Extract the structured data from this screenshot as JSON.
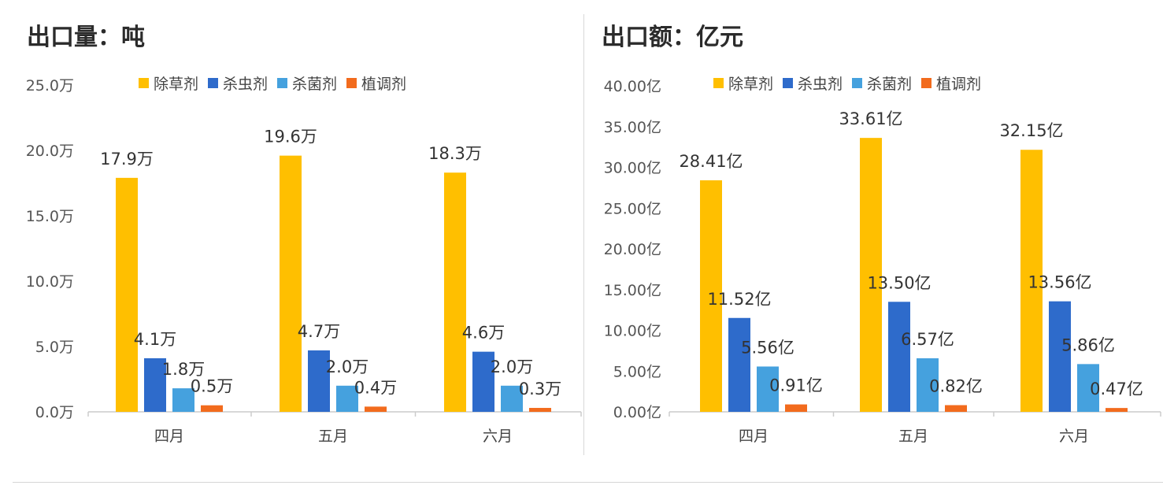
{
  "colors": {
    "herbicide": "#FFBF00",
    "insecticide": "#2E6BCB",
    "fungicide": "#45A1DE",
    "regulator": "#F26B1D",
    "axis": "#cccccc",
    "text": "#404040"
  },
  "chart_data": [
    {
      "type": "bar",
      "title": "出口量：吨",
      "categories": [
        "四月",
        "五月",
        "六月"
      ],
      "legend": [
        "除草剂",
        "杀虫剂",
        "杀菌剂",
        "植调剂"
      ],
      "legend_position": "top",
      "unit_suffix": "万",
      "ylim": [
        0,
        25
      ],
      "yticks": [
        0,
        5,
        10,
        15,
        20,
        25
      ],
      "ytick_labels": [
        "0.0万",
        "5.0万",
        "10.0万",
        "15.0万",
        "20.0万",
        "25.0万"
      ],
      "series": [
        {
          "name": "除草剂",
          "values": [
            17.9,
            19.6,
            18.3
          ],
          "labels": [
            "17.9万",
            "19.6万",
            "18.3万"
          ]
        },
        {
          "name": "杀虫剂",
          "values": [
            4.1,
            4.7,
            4.6
          ],
          "labels": [
            "4.1万",
            "4.7万",
            "4.6万"
          ]
        },
        {
          "name": "杀菌剂",
          "values": [
            1.8,
            2.0,
            2.0
          ],
          "labels": [
            "1.8万",
            "2.0万",
            "2.0万"
          ]
        },
        {
          "name": "植调剂",
          "values": [
            0.5,
            0.4,
            0.3
          ],
          "labels": [
            "0.5万",
            "0.4万",
            "0.3万"
          ]
        }
      ],
      "grid": false
    },
    {
      "type": "bar",
      "title": "出口额：亿元",
      "categories": [
        "四月",
        "五月",
        "六月"
      ],
      "legend": [
        "除草剂",
        "杀虫剂",
        "杀菌剂",
        "植调剂"
      ],
      "legend_position": "top",
      "unit_suffix": "亿",
      "ylim": [
        0,
        40
      ],
      "yticks": [
        0,
        5,
        10,
        15,
        20,
        25,
        30,
        35,
        40
      ],
      "ytick_labels": [
        "0.00亿",
        "5.00亿",
        "10.00亿",
        "15.00亿",
        "20.00亿",
        "25.00亿",
        "30.00亿",
        "35.00亿",
        "40.00亿"
      ],
      "series": [
        {
          "name": "除草剂",
          "values": [
            28.41,
            33.61,
            32.15
          ],
          "labels": [
            "28.41亿",
            "33.61亿",
            "32.15亿"
          ]
        },
        {
          "name": "杀虫剂",
          "values": [
            11.52,
            13.5,
            13.56
          ],
          "labels": [
            "11.52亿",
            "13.50亿",
            "13.56亿"
          ]
        },
        {
          "name": "杀菌剂",
          "values": [
            5.56,
            6.57,
            5.86
          ],
          "labels": [
            "5.56亿",
            "6.57亿",
            "5.86亿"
          ]
        },
        {
          "name": "植调剂",
          "values": [
            0.91,
            0.82,
            0.47
          ],
          "labels": [
            "0.91亿",
            "0.82亿",
            "0.47亿"
          ]
        }
      ],
      "grid": false
    }
  ]
}
